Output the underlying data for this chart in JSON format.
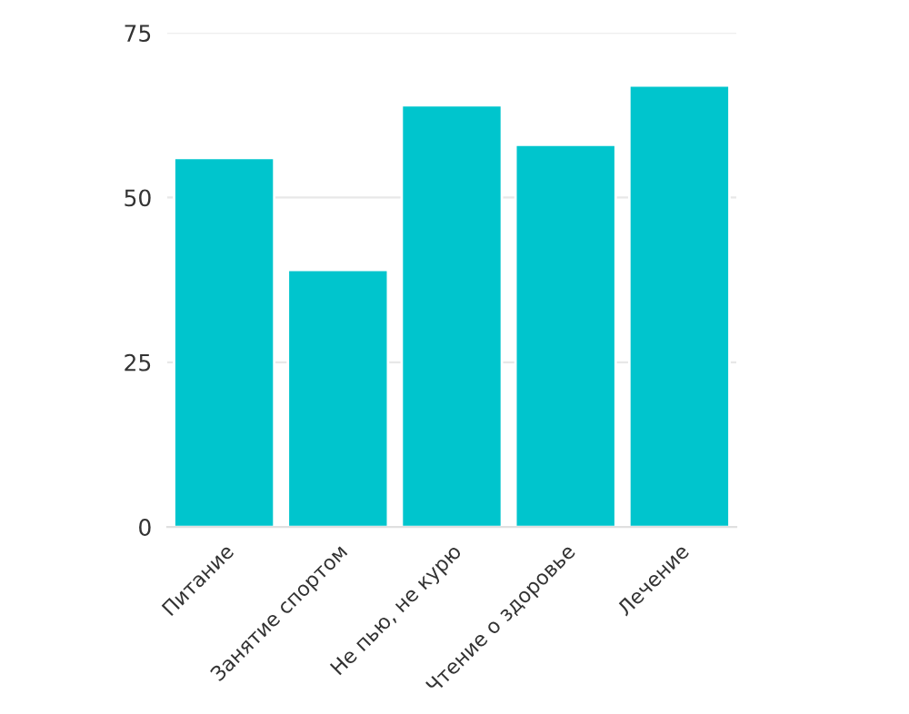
{
  "chart_data": {
    "type": "bar",
    "categories": [
      "Питание",
      "Занятие спортом",
      "Не пью, не курю",
      "Чтение о здоровье",
      "Лечение"
    ],
    "values": [
      56,
      39,
      64,
      58,
      67
    ],
    "color": "#00c5cd",
    "ylim": [
      0,
      75
    ],
    "yticks": [
      0,
      25,
      50,
      75
    ],
    "grid": "y"
  }
}
